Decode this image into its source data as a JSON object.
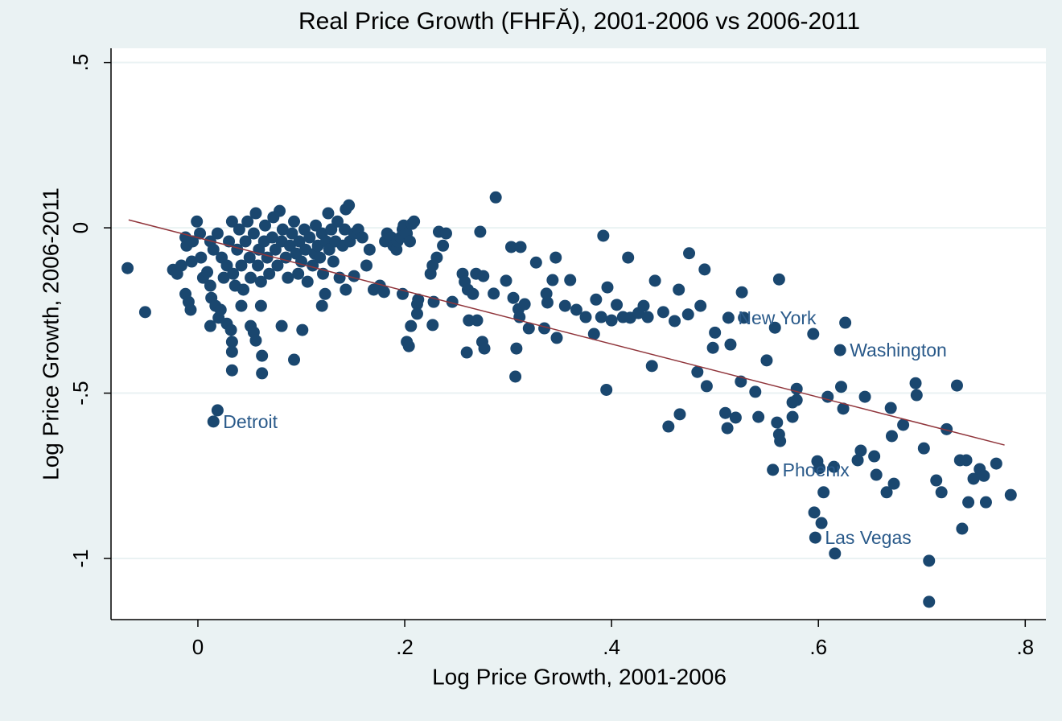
{
  "chart_data": {
    "type": "scatter",
    "title": "Real Price Growth (FHFĂ), 2001-2006 vs 2006-2011",
    "x_label": "Log Price Growth, 2001-2006",
    "y_label": "Log Price Growth, 2006-2011",
    "xlim": [
      -0.084,
      0.82
    ],
    "ylim": [
      -1.185,
      0.543
    ],
    "xticks": [
      0,
      {
        "value": 0.2,
        "label": ".2"
      },
      {
        "value": 0.4,
        "label": ".4"
      },
      {
        "value": 0.6,
        "label": ".6"
      },
      {
        "value": 0.8,
        "label": ".8"
      }
    ],
    "yticks": [
      -1,
      {
        "value": -0.5,
        "label": "-.5"
      },
      0,
      {
        "value": 0.5,
        "label": ".5"
      }
    ],
    "grid": true,
    "series": [
      {
        "color": "#1a476f",
        "x": [
          -0.068,
          -0.051,
          -0.024,
          -0.02,
          -0.016,
          -0.012,
          -0.011,
          -0.006,
          -0.005,
          -0.001,
          0.002,
          0.003,
          0.005,
          -0.012,
          -0.009,
          -0.007,
          0.012,
          0.015,
          0.019,
          0.023,
          0.025,
          0.028,
          0.03,
          0.033,
          0.034,
          0.036,
          0.038,
          0.04,
          0.042,
          0.044,
          0.046,
          0.048,
          0.05,
          0.051,
          0.054,
          0.056,
          0.058,
          0.059,
          0.061,
          0.064,
          0.065,
          0.067,
          0.069,
          0.072,
          0.073,
          0.075,
          0.077,
          0.079,
          0.081,
          0.082,
          0.085,
          0.087,
          0.089,
          0.091,
          0.093,
          0.095,
          0.097,
          0.098,
          0.1,
          0.103,
          0.104,
          0.106,
          0.108,
          0.111,
          0.113,
          0.114,
          0.116,
          0.118,
          0.12,
          0.121,
          0.124,
          0.126,
          0.127,
          0.129,
          0.131,
          0.133,
          0.135,
          0.137,
          0.14,
          0.142,
          0.143,
          0.146,
          0.147,
          0.151,
          0.155,
          0.159,
          0.163,
          0.166,
          0.17,
          0.181,
          0.183,
          0.187,
          0.189,
          0.192,
          0.193,
          0.196,
          0.198,
          0.199,
          0.202,
          0.205,
          0.207,
          0.209,
          0.009,
          0.012,
          0.013,
          0.017,
          0.02,
          0.012,
          0.022,
          0.028,
          0.032,
          0.033,
          0.033,
          0.033,
          0.042,
          0.051,
          0.054,
          0.056,
          0.062,
          0.062,
          0.061,
          0.081,
          0.093,
          0.101,
          0.12,
          0.143,
          0.123,
          0.151,
          0.176,
          0.18,
          0.198,
          0.202,
          0.204,
          0.212,
          0.213,
          0.212,
          0.206,
          0.225,
          0.227,
          0.231,
          0.233,
          0.237,
          0.24,
          0.228,
          0.227,
          0.015,
          0.019,
          0.246,
          0.256,
          0.258,
          0.261,
          0.26,
          0.262,
          0.27,
          0.273,
          0.266,
          0.275,
          0.277,
          0.269,
          0.276,
          0.288,
          0.286,
          0.298,
          0.303,
          0.305,
          0.307,
          0.308,
          0.311,
          0.312,
          0.31,
          0.316,
          0.32,
          0.327,
          0.335,
          0.338,
          0.337,
          0.343,
          0.346,
          0.347,
          0.355,
          0.36,
          0.366,
          0.375,
          0.383,
          0.385,
          0.39,
          0.395,
          0.392,
          0.396,
          0.4,
          0.405,
          0.411,
          0.416,
          0.418,
          0.426,
          0.431,
          0.435,
          0.439,
          0.442,
          0.45,
          0.455,
          0.461,
          0.465,
          0.466,
          0.474,
          0.475,
          0.483,
          0.486,
          0.49,
          0.492,
          0.498,
          0.5,
          0.51,
          0.512,
          0.513,
          0.515,
          0.52,
          0.525,
          0.526,
          0.528,
          0.539,
          0.542,
          0.55,
          0.556,
          0.558,
          0.56,
          0.562,
          0.562,
          0.563,
          0.579,
          0.579,
          0.575,
          0.575,
          0.595,
          0.596,
          0.597,
          0.599,
          0.601,
          0.603,
          0.605,
          0.609,
          0.615,
          0.621,
          0.622,
          0.624,
          0.616,
          0.626,
          0.638,
          0.641,
          0.645,
          0.654,
          0.656,
          0.666,
          0.67,
          0.671,
          0.673,
          0.682,
          0.694,
          0.695,
          0.702,
          0.707,
          0.707,
          0.714,
          0.719,
          0.724,
          0.734,
          0.737,
          0.739,
          0.743,
          0.745,
          0.75,
          0.756,
          0.762,
          0.76,
          0.772,
          0.786
        ],
        "y": [
          -0.122,
          -0.255,
          -0.127,
          -0.139,
          -0.114,
          -0.029,
          -0.054,
          -0.102,
          -0.041,
          0.019,
          -0.017,
          -0.09,
          -0.151,
          -0.2,
          -0.224,
          -0.248,
          -0.041,
          -0.066,
          -0.017,
          -0.09,
          -0.151,
          -0.114,
          -0.041,
          0.019,
          -0.139,
          -0.175,
          -0.066,
          -0.005,
          -0.114,
          -0.187,
          -0.041,
          0.019,
          -0.09,
          -0.151,
          -0.017,
          0.044,
          -0.114,
          -0.066,
          -0.163,
          -0.041,
          0.007,
          -0.09,
          -0.139,
          -0.029,
          0.032,
          -0.066,
          -0.114,
          0.051,
          -0.041,
          -0.005,
          -0.09,
          -0.151,
          -0.054,
          -0.017,
          0.019,
          -0.078,
          -0.139,
          -0.041,
          -0.102,
          -0.005,
          -0.066,
          -0.163,
          -0.029,
          -0.114,
          -0.078,
          0.007,
          -0.054,
          -0.09,
          -0.017,
          -0.139,
          -0.041,
          0.044,
          -0.066,
          -0.005,
          -0.102,
          -0.041,
          0.019,
          -0.151,
          -0.054,
          -0.005,
          0.056,
          0.068,
          -0.041,
          -0.017,
          -0.005,
          -0.029,
          -0.114,
          -0.066,
          -0.187,
          -0.041,
          -0.017,
          -0.029,
          -0.054,
          -0.066,
          -0.041,
          -0.029,
          -0.005,
          0.007,
          -0.017,
          -0.041,
          0.012,
          0.019,
          -0.134,
          -0.175,
          -0.212,
          -0.236,
          -0.272,
          -0.297,
          -0.248,
          -0.29,
          -0.309,
          -0.345,
          -0.375,
          -0.431,
          -0.236,
          -0.297,
          -0.316,
          -0.341,
          -0.387,
          -0.44,
          -0.236,
          -0.297,
          -0.399,
          -0.309,
          -0.236,
          -0.187,
          -0.2,
          -0.146,
          -0.175,
          -0.194,
          -0.2,
          -0.345,
          -0.358,
          -0.231,
          -0.217,
          -0.26,
          -0.297,
          -0.139,
          -0.114,
          -0.09,
          -0.012,
          -0.054,
          -0.017,
          -0.224,
          -0.294,
          -0.586,
          -0.552,
          -0.224,
          -0.139,
          -0.163,
          -0.187,
          -0.377,
          -0.28,
          -0.28,
          -0.012,
          -0.2,
          -0.345,
          -0.365,
          -0.139,
          -0.146,
          0.092,
          -0.199,
          -0.16,
          -0.058,
          -0.212,
          -0.45,
          -0.365,
          -0.27,
          -0.058,
          -0.246,
          -0.231,
          -0.304,
          -0.105,
          -0.304,
          -0.226,
          -0.199,
          -0.158,
          -0.09,
          -0.333,
          -0.236,
          -0.158,
          -0.248,
          -0.27,
          -0.321,
          -0.217,
          -0.27,
          -0.49,
          -0.024,
          -0.18,
          -0.28,
          -0.233,
          -0.27,
          -0.09,
          -0.272,
          -0.258,
          -0.236,
          -0.27,
          -0.418,
          -0.16,
          -0.255,
          -0.601,
          -0.282,
          -0.187,
          -0.564,
          -0.262,
          -0.077,
          -0.436,
          -0.236,
          -0.126,
          -0.479,
          -0.363,
          -0.317,
          -0.56,
          -0.606,
          -0.272,
          -0.353,
          -0.574,
          -0.465,
          -0.195,
          -0.272,
          -0.496,
          -0.572,
          -0.401,
          -0.732,
          -0.302,
          -0.589,
          -0.156,
          -0.625,
          -0.645,
          -0.487,
          -0.521,
          -0.528,
          -0.572,
          -0.321,
          -0.861,
          -0.937,
          -0.706,
          -0.727,
          -0.893,
          -0.8,
          -0.511,
          -0.723,
          -0.37,
          -0.481,
          -0.547,
          -0.985,
          -0.287,
          -0.703,
          -0.674,
          -0.511,
          -0.691,
          -0.747,
          -0.8,
          -0.545,
          -0.63,
          -0.774,
          -0.596,
          -0.47,
          -0.506,
          -0.667,
          -1.007,
          -1.131,
          -0.764,
          -0.8,
          -0.609,
          -0.477,
          -0.703,
          -0.91,
          -0.703,
          -0.83,
          -0.759,
          -0.73,
          -0.83,
          -0.75,
          -0.713,
          -0.808
        ]
      }
    ],
    "fit": {
      "color": "#90353b",
      "x": [
        -0.067,
        0.78
      ],
      "y": [
        0.024,
        -0.657
      ]
    },
    "annotations": [
      {
        "text": "Detroit",
        "x": 0.015,
        "y": -0.586
      },
      {
        "text": "New York",
        "x": 0.513,
        "y": -0.272
      },
      {
        "text": "Washington",
        "x": 0.621,
        "y": -0.37
      },
      {
        "text": "Phoenix",
        "x": 0.556,
        "y": -0.732
      },
      {
        "text": "Las Vegas",
        "x": 0.597,
        "y": -0.937
      }
    ]
  }
}
